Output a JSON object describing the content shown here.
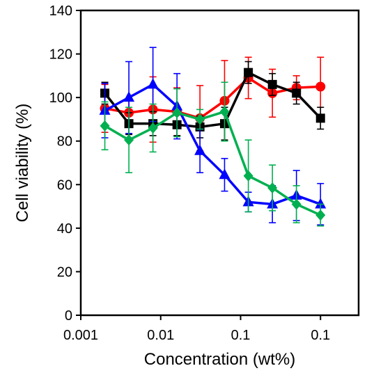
{
  "chart_data": {
    "type": "line",
    "xscale": "log",
    "xlabel": "Concentration (wt%)",
    "ylabel": "Cell viability (%)",
    "ylim": [
      0,
      140
    ],
    "yticks": [
      0,
      20,
      40,
      60,
      80,
      100,
      120,
      140
    ],
    "xtick_labels": [
      "0.001",
      "0.01",
      "0.1",
      "0.1"
    ],
    "grid": false,
    "legend": "none",
    "x": [
      0.002,
      0.004,
      0.008,
      0.016,
      0.031,
      0.063,
      0.125,
      0.25,
      0.5,
      1.0
    ],
    "series": [
      {
        "color": "#ff0000",
        "marker": "circle",
        "values": [
          95,
          93,
          94.5,
          93.5,
          90.5,
          98.5,
          109,
          102,
          104.5,
          105
        ],
        "errors": [
          11,
          6,
          15,
          11,
          15,
          18.5,
          9.5,
          11,
          5.5,
          13.5
        ]
      },
      {
        "color": "#000000",
        "marker": "square",
        "values": [
          102,
          88,
          88,
          87.5,
          86.5,
          88,
          111.5,
          106,
          102,
          90.5
        ],
        "errors": [
          5,
          5,
          5.5,
          5,
          5,
          7.5,
          5,
          5,
          5,
          5
        ]
      },
      {
        "color": "#0000ff",
        "marker": "triangle",
        "values": [
          94,
          100,
          106,
          96,
          75.5,
          64.5,
          52,
          51,
          55,
          51
        ],
        "errors": [
          12.5,
          16.5,
          17,
          15,
          10,
          7.5,
          4.5,
          8.5,
          11.5,
          9.5
        ]
      },
      {
        "color": "#00b050",
        "marker": "diamond",
        "values": [
          87,
          80.5,
          86,
          93,
          90,
          93.5,
          64,
          58.5,
          51,
          46
        ],
        "errors": [
          11,
          15,
          11,
          11,
          4.5,
          13.5,
          16.5,
          10.5,
          8.5,
          5
        ]
      }
    ]
  }
}
